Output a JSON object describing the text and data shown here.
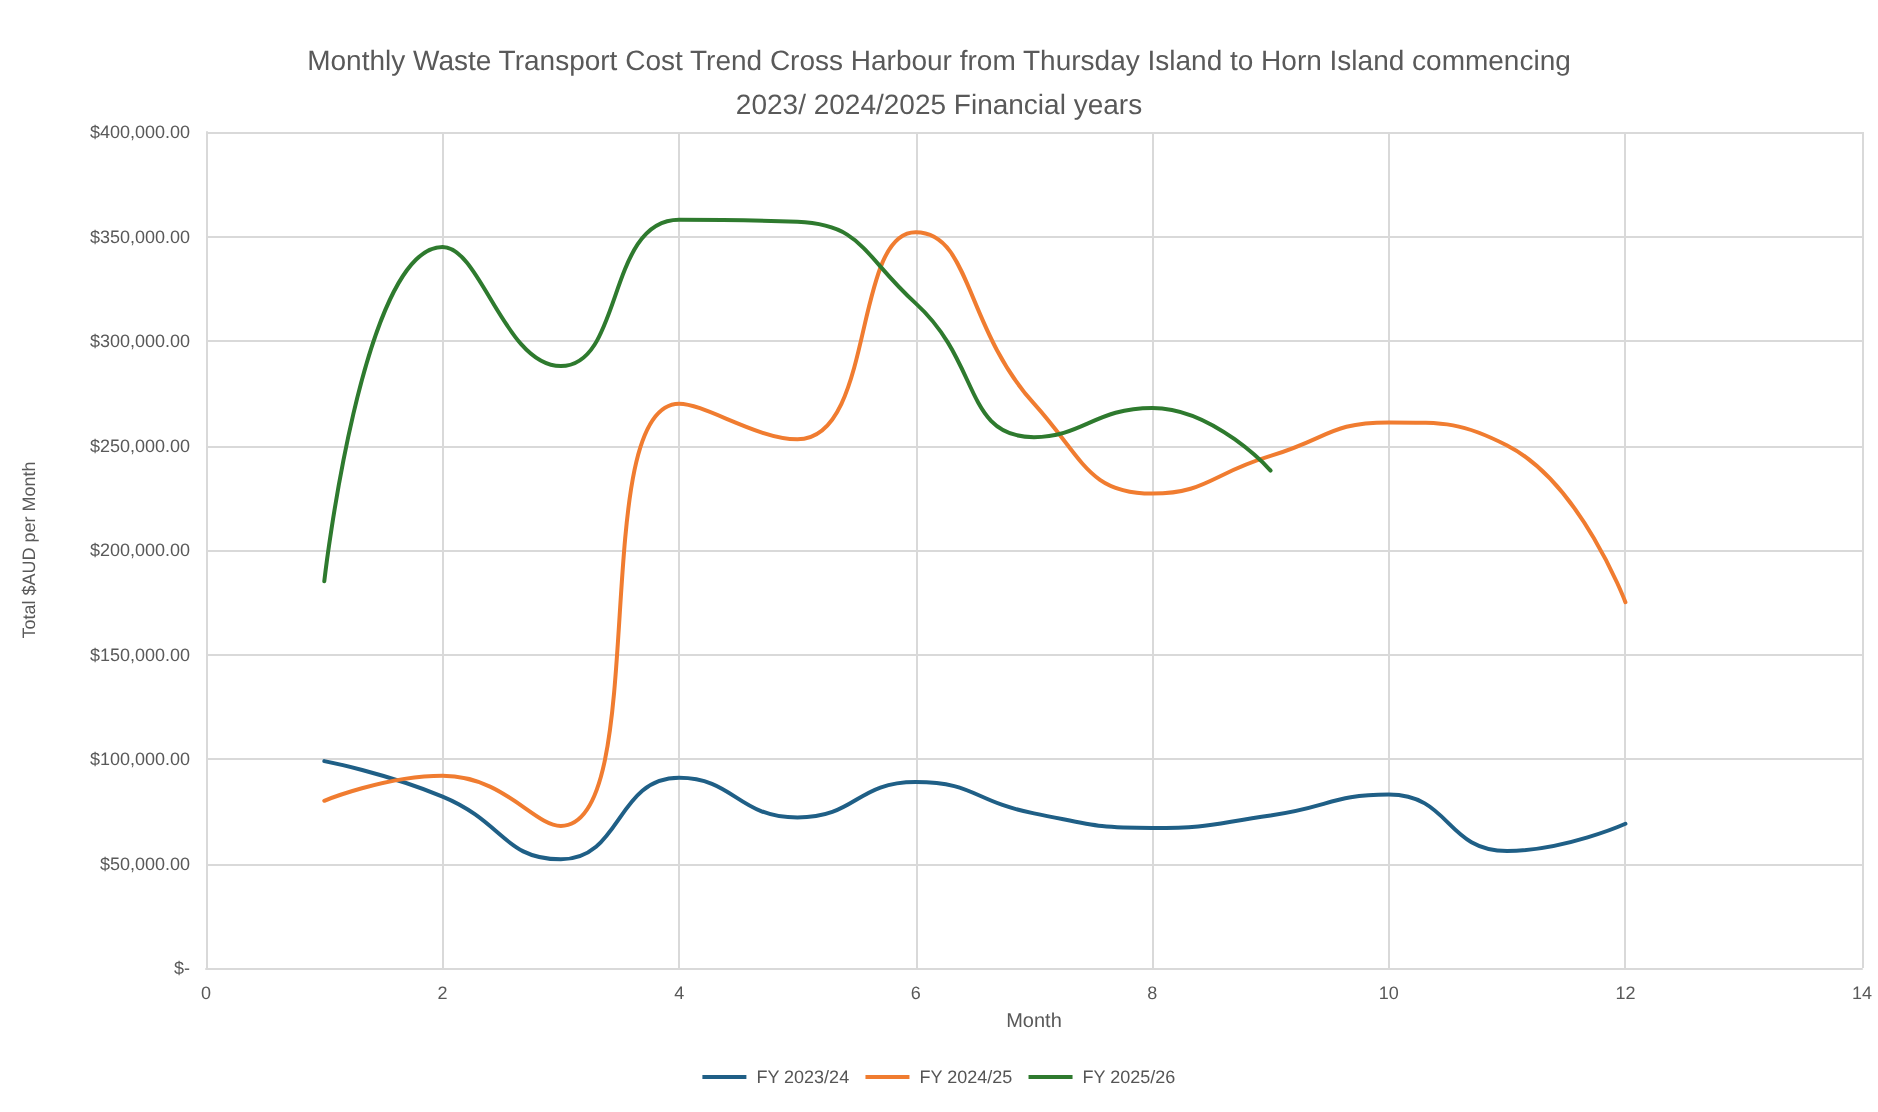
{
  "chart_data": {
    "type": "line",
    "title": "Monthly Waste Transport Cost Trend Cross Harbour from Thursday Island to Horn Island commencing\n2023/ 2024/2025 Financial years",
    "xlabel": "Month",
    "ylabel": "Total $AUD per Month",
    "x": [
      1,
      2,
      3,
      4,
      5,
      6,
      7,
      8,
      9,
      10,
      11,
      12
    ],
    "series": [
      {
        "name": "FY 2023/24",
        "color": "#1f5f86",
        "values": [
          99000,
          82000,
          52000,
          91000,
          72000,
          89000,
          74000,
          67000,
          73000,
          83000,
          56000,
          69000
        ]
      },
      {
        "name": "FY 2024/25",
        "color": "#f07c30",
        "values": [
          80000,
          92000,
          68000,
          270000,
          253000,
          352000,
          270000,
          227000,
          245000,
          261000,
          250000,
          175000
        ]
      },
      {
        "name": "FY 2025/26",
        "color": "#2e7a2e",
        "values": [
          185000,
          345000,
          288000,
          358000,
          357000,
          318000,
          254000,
          268000,
          238000,
          null,
          null,
          null
        ]
      }
    ],
    "xlim": [
      0,
      14
    ],
    "xticks": [
      0,
      2,
      4,
      6,
      8,
      10,
      12,
      14
    ],
    "ylim": [
      0,
      400000
    ],
    "yticks": [
      {
        "value": 0,
        "label": "$-"
      },
      {
        "value": 50000,
        "label": "$50,000.00"
      },
      {
        "value": 100000,
        "label": "$100,000.00"
      },
      {
        "value": 150000,
        "label": "$150,000.00"
      },
      {
        "value": 200000,
        "label": "$200,000.00"
      },
      {
        "value": 250000,
        "label": "$250,000.00"
      },
      {
        "value": 300000,
        "label": "$300,000.00"
      },
      {
        "value": 350000,
        "label": "$350,000.00"
      },
      {
        "value": 400000,
        "label": "$400,000.00"
      }
    ],
    "grid": true,
    "legend": "bottom",
    "marker": "none",
    "line_style": "solid"
  }
}
